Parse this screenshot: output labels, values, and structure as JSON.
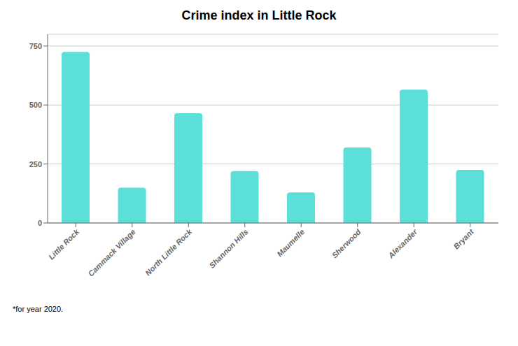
{
  "chart_data": {
    "type": "bar",
    "title": "Crime index in Little Rock",
    "categories": [
      "Little Rock",
      "Cammack Village",
      "North Little Rock",
      "Shannon Hills",
      "Maumelle",
      "Sherwood",
      "Alexander",
      "Bryant"
    ],
    "values": [
      725,
      150,
      465,
      220,
      130,
      320,
      565,
      225
    ],
    "color": "#5DDFD9",
    "ylim": [
      0,
      800
    ],
    "yticks": [
      0,
      250,
      500,
      750
    ],
    "grid": true,
    "annotations": [
      "*for year 2020."
    ]
  }
}
